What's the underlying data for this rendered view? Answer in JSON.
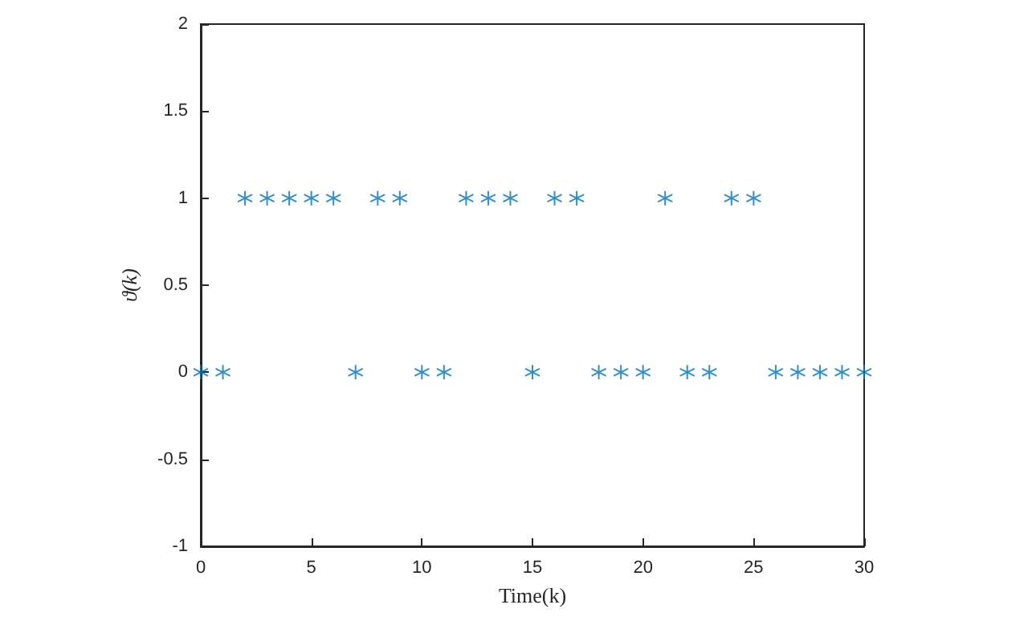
{
  "chart_data": {
    "type": "scatter",
    "xlabel": "Time(k)",
    "ylabel": "ϑ(k)",
    "x": [
      0,
      1,
      2,
      3,
      4,
      5,
      6,
      7,
      8,
      9,
      10,
      11,
      12,
      13,
      14,
      15,
      16,
      17,
      18,
      19,
      20,
      21,
      22,
      23,
      24,
      25,
      26,
      27,
      28,
      29,
      30
    ],
    "series": [
      {
        "color": "#0072bd",
        "values": [
          0,
          0,
          1,
          1,
          1,
          1,
          1,
          0,
          1,
          1,
          0,
          0,
          1,
          1,
          1,
          0,
          1,
          1,
          0,
          0,
          0,
          1,
          0,
          0,
          1,
          1,
          0,
          0,
          0,
          0,
          0
        ]
      }
    ],
    "xlim": [
      0,
      30
    ],
    "xticks": [
      0,
      5,
      10,
      15,
      20,
      25,
      30
    ],
    "ylim": [
      -1,
      2
    ],
    "yticks": [
      -1,
      -0.5,
      0,
      0.5,
      1,
      1.5,
      2
    ],
    "marker": "star",
    "grid": false
  }
}
